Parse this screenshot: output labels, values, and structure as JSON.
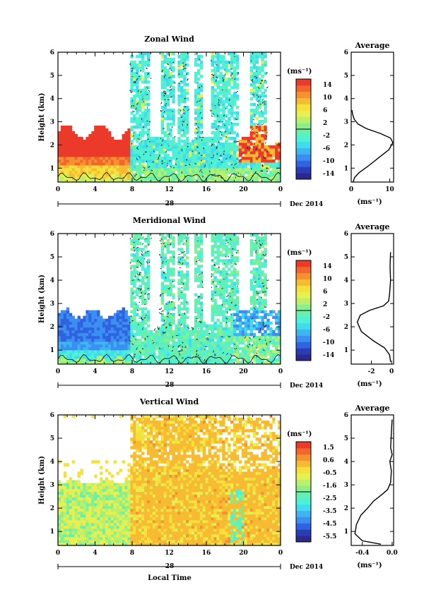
{
  "figure": {
    "x_axis_label": "Local Time",
    "date_label": "Dec 2014",
    "day_label": "28"
  },
  "colormap": [
    "#2a2a8c",
    "#2b3cb6",
    "#2f63e0",
    "#3b8ff0",
    "#3fb4f0",
    "#3fdcee",
    "#4ff0d8",
    "#66f0b0",
    "#8cf08a",
    "#bdf06a",
    "#e6f050",
    "#f5e03c",
    "#f7bb33",
    "#f59230",
    "#f2652c",
    "#ec3a2a"
  ],
  "chart_data": [
    {
      "type": "heatmap",
      "id": "zonal",
      "title": "Zonal Wind",
      "ylabel": "Height (km)",
      "x_ticks": [
        "0",
        "4",
        "8",
        "12",
        "16",
        "20",
        "0"
      ],
      "xlim": [
        0,
        24
      ],
      "y_ticks": [
        "1",
        "2",
        "3",
        "4",
        "5",
        "6"
      ],
      "ylim": [
        0.4,
        6
      ],
      "cbar_unit": "(ms⁻¹)",
      "cbar_ticks": [
        "14",
        "10",
        "6",
        "2",
        "-2",
        "-6",
        "-10",
        "-14"
      ],
      "cbar_range": [
        -16,
        16
      ],
      "average": {
        "title": "Average",
        "xlabel": "(ms⁻¹)",
        "x_ticks": [
          "0",
          "10"
        ],
        "xlim": [
          0,
          11
        ],
        "ylim": [
          0.4,
          6
        ],
        "y_ticks": [
          "1",
          "2",
          "3",
          "4",
          "5",
          "6"
        ],
        "profile": [
          [
            0.5,
            0.4
          ],
          [
            0.9,
            0.6
          ],
          [
            2,
            0.8
          ],
          [
            4.5,
            1.1
          ],
          [
            7.5,
            1.5
          ],
          [
            9.8,
            1.8
          ],
          [
            10.8,
            2.1
          ],
          [
            10.2,
            2.3
          ],
          [
            7.5,
            2.5
          ],
          [
            4,
            2.7
          ],
          [
            1.8,
            2.9
          ],
          [
            0.8,
            3.1
          ],
          [
            0.4,
            3.3
          ],
          [
            0.2,
            3.5
          ]
        ]
      }
    },
    {
      "type": "heatmap",
      "id": "meridional",
      "title": "Meridional Wind",
      "ylabel": "Height (km)",
      "x_ticks": [
        "0",
        "4",
        "8",
        "12",
        "16",
        "20",
        "0"
      ],
      "xlim": [
        0,
        24
      ],
      "y_ticks": [
        "1",
        "2",
        "3",
        "4",
        "5",
        "6"
      ],
      "ylim": [
        0.4,
        6
      ],
      "cbar_unit": "(ms⁻¹)",
      "cbar_ticks": [
        "14",
        "10",
        "6",
        "2",
        "-2",
        "-6",
        "-10",
        "-14"
      ],
      "cbar_range": [
        -16,
        16
      ],
      "average": {
        "title": "Average",
        "xlabel": "(ms⁻¹)",
        "x_ticks": [
          "-2",
          "0"
        ],
        "xlim": [
          -4,
          0.2
        ],
        "ylim": [
          0.4,
          6
        ],
        "y_ticks": [
          "1",
          "2",
          "3",
          "4",
          "5",
          "6"
        ],
        "profile": [
          [
            -0.1,
            0.5
          ],
          [
            -0.2,
            0.8
          ],
          [
            -0.7,
            1.1
          ],
          [
            -1.8,
            1.4
          ],
          [
            -3,
            1.8
          ],
          [
            -3.4,
            2.2
          ],
          [
            -3.1,
            2.5
          ],
          [
            -2.2,
            2.7
          ],
          [
            -0.8,
            2.9
          ],
          [
            -0.3,
            3.1
          ],
          [
            -0.2,
            3.4
          ],
          [
            -0.1,
            4.0
          ],
          [
            -0.15,
            4.6
          ],
          [
            -0.1,
            5.2
          ]
        ]
      }
    },
    {
      "type": "heatmap",
      "id": "vertical",
      "title": "Vertical Wind",
      "ylabel": "Height (km)",
      "x_ticks": [
        "0",
        "4",
        "8",
        "12",
        "16",
        "20",
        "0"
      ],
      "xlim": [
        0,
        24
      ],
      "y_ticks": [
        "1",
        "2",
        "3",
        "4",
        "5",
        "6"
      ],
      "ylim": [
        0.4,
        6
      ],
      "cbar_unit": "(ms⁻¹)",
      "cbar_ticks": [
        "1.5",
        "0.6",
        "-0.5",
        "-1.6",
        "-2.5",
        "-3.5",
        "-4.5",
        "-5.5"
      ],
      "cbar_range": [
        -6,
        2
      ],
      "average": {
        "title": "Average",
        "xlabel": "(ms⁻¹)",
        "x_ticks": [
          "-0.4",
          "0.0"
        ],
        "xlim": [
          -0.55,
          0.02
        ],
        "ylim": [
          0.4,
          6
        ],
        "y_ticks": [
          "1",
          "2",
          "3",
          "4",
          "5",
          "6"
        ],
        "profile": [
          [
            -0.15,
            0.45
          ],
          [
            -0.4,
            0.6
          ],
          [
            -0.5,
            0.9
          ],
          [
            -0.48,
            1.3
          ],
          [
            -0.42,
            1.7
          ],
          [
            -0.33,
            2.0
          ],
          [
            -0.25,
            2.3
          ],
          [
            -0.13,
            2.6
          ],
          [
            -0.06,
            2.8
          ],
          [
            -0.02,
            3.1
          ],
          [
            -0.01,
            3.6
          ],
          [
            -0.03,
            4.0
          ],
          [
            0.0,
            4.3
          ],
          [
            -0.02,
            4.6
          ],
          [
            -0.01,
            5.2
          ],
          [
            0.0,
            5.8
          ]
        ]
      }
    }
  ]
}
